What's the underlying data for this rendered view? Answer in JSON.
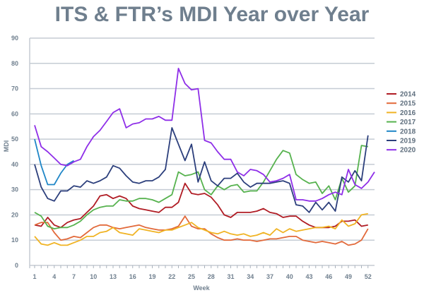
{
  "chart_data": {
    "type": "line",
    "title": "ITS & FTR’s MDI Year over Year",
    "xlabel": "Week",
    "ylabel": "MDI",
    "ylim": [
      0,
      90
    ],
    "xlim": [
      1,
      52
    ],
    "yticks": [
      0,
      10,
      20,
      30,
      40,
      50,
      60,
      70,
      80,
      90
    ],
    "xticks": [
      1,
      4,
      7,
      10,
      13,
      16,
      19,
      22,
      25,
      28,
      31,
      34,
      37,
      40,
      43,
      46,
      49,
      52
    ],
    "grid": true,
    "legend_position": "right",
    "series": [
      {
        "name": "2014",
        "color": "#b01c24",
        "values": [
          16,
          15.5,
          19,
          16,
          15,
          17,
          18,
          18.5,
          21,
          23.5,
          27.5,
          28,
          26.5,
          27.5,
          26.5,
          23.5,
          22.5,
          22,
          21.5,
          21,
          23,
          23,
          25,
          32.5,
          28.5,
          28,
          28.5,
          27,
          24,
          20,
          19,
          21,
          21,
          21,
          21.5,
          22.5,
          21,
          20.5,
          19,
          19.5,
          19.5,
          17.5,
          16,
          15,
          15,
          15,
          15.5,
          17.5,
          17.5,
          18,
          15.5,
          16
        ]
      },
      {
        "name": "2015",
        "color": "#e2693a",
        "values": [
          16,
          17,
          17,
          13,
          10,
          10.5,
          11.5,
          11,
          13,
          15,
          16,
          16,
          15,
          14.5,
          15,
          15.5,
          16,
          15,
          14.5,
          14,
          14,
          14.5,
          15.5,
          19.5,
          15.5,
          14.5,
          14.5,
          12.5,
          11,
          10,
          10,
          10.5,
          10,
          10,
          9.5,
          10,
          10.5,
          10.5,
          11,
          11.5,
          11.5,
          10,
          9.5,
          9,
          9.5,
          9,
          8.5,
          9.5,
          8,
          8.5,
          10,
          14.5
        ]
      },
      {
        "name": "2016",
        "color": "#f0b323",
        "values": [
          11.5,
          8.5,
          8,
          9,
          8,
          8,
          9,
          10,
          11.5,
          11.5,
          13,
          13.5,
          15,
          13,
          12.5,
          12,
          14.5,
          14,
          13.5,
          13,
          14,
          14,
          15,
          16,
          17,
          15,
          14,
          13,
          12.5,
          13.5,
          12.5,
          12,
          12.5,
          11.5,
          12,
          13,
          12,
          14.5,
          13,
          14.5,
          13.5,
          14,
          14.5,
          15,
          15,
          15.5,
          14.5,
          18,
          15.5,
          16.5,
          20,
          20.5
        ]
      },
      {
        "name": "2017",
        "color": "#56b24e",
        "values": [
          21,
          19.5,
          15.5,
          14.5,
          15,
          15,
          16,
          17.5,
          20,
          22,
          23,
          23.5,
          23.5,
          26,
          25.5,
          25.5,
          26.5,
          26.5,
          26,
          25,
          26.5,
          28,
          37,
          35.5,
          36,
          37,
          30,
          28,
          31.5,
          30,
          31.5,
          32,
          29,
          29.5,
          29.5,
          33,
          37.5,
          42,
          45.5,
          44.5,
          36,
          34,
          32.5,
          33,
          28.5,
          31.5,
          26,
          34.5,
          29,
          31.5,
          47.5,
          47
        ]
      },
      {
        "name": "2018",
        "color": "#1f86c7",
        "values": [
          50,
          39.5,
          32,
          32,
          36.5,
          40,
          41.5
        ]
      },
      {
        "name": "2019",
        "color": "#2c3f7c",
        "values": [
          40,
          31,
          26.5,
          25.5,
          29.5,
          29.5,
          31.5,
          31,
          33.5,
          32.5,
          33.5,
          35,
          39.5,
          38.5,
          35.5,
          33,
          32.5,
          33.5,
          33.5,
          35,
          38,
          54.5,
          48,
          41.5,
          48,
          33,
          41,
          33.5,
          31.5,
          34.5,
          34.5,
          36.5,
          33,
          31,
          32.5,
          32.5,
          32.5,
          33,
          33.5,
          32.5,
          24,
          23.5,
          21,
          25,
          22,
          25,
          21.5,
          35,
          33,
          37.5,
          33.5,
          51.5
        ]
      },
      {
        "name": "2020",
        "color": "#8e2ee8",
        "values": [
          55.5,
          47,
          45,
          42.5,
          40,
          39.5,
          41,
          42,
          47,
          51,
          53.5,
          57,
          60.5,
          62,
          54.5,
          56,
          56.5,
          58,
          58,
          59,
          57.5,
          57.5,
          78,
          72,
          69.5,
          70,
          49.5,
          48.5,
          45,
          42,
          42,
          37,
          35.5,
          38,
          37.5,
          36,
          33,
          33.5,
          34.5,
          36,
          26,
          26,
          25.5,
          25.5,
          26.5,
          28,
          29,
          28,
          38,
          32,
          30.5,
          33,
          37
        ]
      }
    ]
  }
}
